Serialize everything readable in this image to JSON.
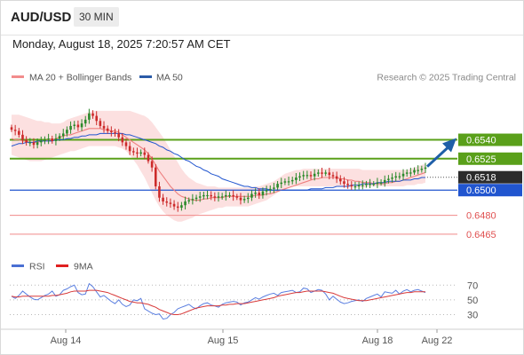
{
  "header": {
    "symbol": "AUD/USD",
    "timeframe": "30 MIN",
    "datetime": "Monday, August 18, 2025 7:20:57 AM CET"
  },
  "legend": [
    {
      "label": "MA 20 + Bollinger Bands",
      "color": "#f28c8c"
    },
    {
      "label": "MA 50",
      "color": "#2b5ba8"
    }
  ],
  "credit": "Research © 2025 Trading Central",
  "rsi_legend": [
    {
      "label": "RSI",
      "color": "#4a6fd3"
    },
    {
      "label": "9MA",
      "color": "#e02020"
    }
  ],
  "colors": {
    "up_candle": "#2a8a2a",
    "down_candle": "#cc2a2a",
    "resistance": "#5aa01a",
    "pivot": "#2155cf",
    "support": "#f08a8a",
    "arrow": "#1f5fa8",
    "last_price": "#2b2b2b"
  },
  "chart_data": {
    "type": "candlestick",
    "symbol": "AUD/USD",
    "ylim": [
      0.6455,
      0.6582
    ],
    "x_ticks": [
      "Aug 14",
      "Aug 15",
      "Aug 18",
      "Aug 22"
    ],
    "levels": [
      {
        "value": 0.654,
        "label": "0.6540",
        "kind": "resistance"
      },
      {
        "value": 0.6525,
        "label": "0.6525",
        "kind": "resistance"
      },
      {
        "value": 0.65,
        "label": "0.6500",
        "kind": "pivot"
      },
      {
        "value": 0.648,
        "label": "0.6480",
        "kind": "support"
      },
      {
        "value": 0.6465,
        "label": "0.6465",
        "kind": "support"
      }
    ],
    "last_price": {
      "value": 0.6518,
      "label": "0.6518"
    },
    "close": [
      0.6548,
      0.6547,
      0.6544,
      0.654,
      0.6538,
      0.6538,
      0.6536,
      0.6538,
      0.6539,
      0.654,
      0.6541,
      0.6539,
      0.6541,
      0.6543,
      0.6545,
      0.6548,
      0.6551,
      0.6552,
      0.655,
      0.6553,
      0.6556,
      0.6561,
      0.6559,
      0.6555,
      0.6551,
      0.6549,
      0.6547,
      0.6546,
      0.6545,
      0.6542,
      0.6538,
      0.6535,
      0.6531,
      0.653,
      0.6529,
      0.653,
      0.6528,
      0.6523,
      0.6518,
      0.6503,
      0.6494,
      0.6491,
      0.649,
      0.6489,
      0.6487,
      0.6486,
      0.6488,
      0.6491,
      0.6492,
      0.6493,
      0.6494,
      0.6495,
      0.6496,
      0.6496,
      0.6495,
      0.6494,
      0.6495,
      0.6495,
      0.6496,
      0.6496,
      0.6495,
      0.6494,
      0.6492,
      0.6493,
      0.6494,
      0.6497,
      0.6498,
      0.6496,
      0.6499,
      0.65,
      0.6501,
      0.6502,
      0.6505,
      0.6506,
      0.6507,
      0.6507,
      0.6508,
      0.651,
      0.6511,
      0.6512,
      0.6512,
      0.6511,
      0.6513,
      0.6514,
      0.6513,
      0.6514,
      0.6512,
      0.6511,
      0.6509,
      0.6507,
      0.6505,
      0.6504,
      0.6503,
      0.6503,
      0.6504,
      0.6504,
      0.6505,
      0.6505,
      0.6505,
      0.6506,
      0.6506,
      0.6508,
      0.6509,
      0.651,
      0.6511,
      0.6511,
      0.6513,
      0.6514,
      0.6514,
      0.6516,
      0.6516,
      0.6517,
      0.6518
    ],
    "ma20": [
      0.6541,
      0.654,
      0.654,
      0.6539,
      0.6539,
      0.6538,
      0.6538,
      0.6538,
      0.6539,
      0.6539,
      0.654,
      0.654,
      0.6541,
      0.6542,
      0.6543,
      0.6544,
      0.6544,
      0.6545,
      0.6546,
      0.6547,
      0.6548,
      0.6549,
      0.6549,
      0.6549,
      0.6549,
      0.6548,
      0.6548,
      0.6547,
      0.6547,
      0.6546,
      0.6544,
      0.6542,
      0.654,
      0.6538,
      0.6536,
      0.6534,
      0.6532,
      0.6529,
      0.6525,
      0.652,
      0.6515,
      0.6511,
      0.6507,
      0.6503,
      0.65,
      0.6497,
      0.6495,
      0.6494,
      0.6493,
      0.6492,
      0.6492,
      0.6492,
      0.6493,
      0.6493,
      0.6494,
      0.6494,
      0.6494,
      0.6494,
      0.6495,
      0.6495,
      0.6495,
      0.6495,
      0.6495,
      0.6495,
      0.6495,
      0.6495,
      0.6496,
      0.6496,
      0.6496,
      0.6497,
      0.6497,
      0.6498,
      0.6499,
      0.65,
      0.6501,
      0.6502,
      0.6503,
      0.6504,
      0.6505,
      0.6506,
      0.6507,
      0.6508,
      0.6509,
      0.6509,
      0.651,
      0.651,
      0.651,
      0.651,
      0.651,
      0.6509,
      0.6509,
      0.6508,
      0.6508,
      0.6507,
      0.6507,
      0.6506,
      0.6506,
      0.6506,
      0.6505,
      0.6505,
      0.6505,
      0.6505,
      0.6506,
      0.6506,
      0.6507,
      0.6507,
      0.6508,
      0.6509,
      0.651,
      0.6511,
      0.6512,
      0.6513,
      0.6514
    ],
    "bb_upper": [
      0.656,
      0.656,
      0.656,
      0.6559,
      0.6558,
      0.6557,
      0.6556,
      0.6555,
      0.6555,
      0.6554,
      0.6554,
      0.6553,
      0.6553,
      0.6553,
      0.6554,
      0.6556,
      0.6557,
      0.6558,
      0.6559,
      0.656,
      0.6561,
      0.6562,
      0.6563,
      0.6563,
      0.6563,
      0.6563,
      0.6563,
      0.6563,
      0.6563,
      0.6563,
      0.6563,
      0.6563,
      0.6563,
      0.6562,
      0.6561,
      0.656,
      0.6559,
      0.6557,
      0.6554,
      0.655,
      0.6546,
      0.6542,
      0.6537,
      0.6532,
      0.6527,
      0.6522,
      0.6517,
      0.6513,
      0.651,
      0.6508,
      0.6506,
      0.6505,
      0.6504,
      0.6503,
      0.6503,
      0.6503,
      0.6502,
      0.6502,
      0.6502,
      0.6502,
      0.6502,
      0.6502,
      0.6502,
      0.6502,
      0.6502,
      0.6502,
      0.6503,
      0.6503,
      0.6504,
      0.6505,
      0.6506,
      0.6507,
      0.6509,
      0.6511,
      0.6513,
      0.6514,
      0.6515,
      0.6516,
      0.6516,
      0.6517,
      0.6517,
      0.6517,
      0.6517,
      0.6517,
      0.6517,
      0.6517,
      0.6517,
      0.6517,
      0.6517,
      0.6517,
      0.6517,
      0.6517,
      0.6517,
      0.6517,
      0.6517,
      0.6516,
      0.6516,
      0.6516,
      0.6516,
      0.6516,
      0.6516,
      0.6516,
      0.6516,
      0.6516,
      0.6516,
      0.6516,
      0.6516,
      0.6516,
      0.6517,
      0.6518,
      0.6519,
      0.652,
      0.6521
    ],
    "bb_lower": [
      0.6528,
      0.6527,
      0.6526,
      0.6525,
      0.6524,
      0.6523,
      0.6523,
      0.6523,
      0.6523,
      0.6524,
      0.6525,
      0.6526,
      0.6527,
      0.6528,
      0.6529,
      0.653,
      0.6531,
      0.6531,
      0.6532,
      0.6533,
      0.6534,
      0.6535,
      0.6535,
      0.6535,
      0.6535,
      0.6535,
      0.6535,
      0.6535,
      0.6535,
      0.6534,
      0.6533,
      0.6531,
      0.6528,
      0.6524,
      0.652,
      0.6515,
      0.651,
      0.6504,
      0.6498,
      0.6492,
      0.6487,
      0.6483,
      0.648,
      0.6478,
      0.6476,
      0.6475,
      0.6475,
      0.6476,
      0.6477,
      0.6478,
      0.648,
      0.6481,
      0.6482,
      0.6483,
      0.6484,
      0.6485,
      0.6486,
      0.6486,
      0.6487,
      0.6487,
      0.6487,
      0.6487,
      0.6487,
      0.6487,
      0.6487,
      0.6488,
      0.6489,
      0.649,
      0.6491,
      0.6492,
      0.6494,
      0.6496,
      0.6498,
      0.65,
      0.6501,
      0.6502,
      0.6503,
      0.6503,
      0.6503,
      0.6503,
      0.6503,
      0.6503,
      0.6503,
      0.6503,
      0.6503,
      0.6503,
      0.6503,
      0.6503,
      0.6503,
      0.6503,
      0.6502,
      0.6502,
      0.6502,
      0.6502,
      0.6502,
      0.6502,
      0.6502,
      0.6503,
      0.6503,
      0.6503,
      0.6503,
      0.6503,
      0.6503,
      0.6503,
      0.6503,
      0.6503,
      0.6503,
      0.6504,
      0.6504,
      0.6504,
      0.6505,
      0.6505,
      0.6506
    ],
    "ma50": [
      0.6535,
      0.6536,
      0.6537,
      0.6537,
      0.6538,
      0.6538,
      0.6538,
      0.6539,
      0.6539,
      0.6539,
      0.6539,
      0.6539,
      0.654,
      0.654,
      0.654,
      0.6541,
      0.6541,
      0.6542,
      0.6542,
      0.6543,
      0.6543,
      0.6544,
      0.6544,
      0.6544,
      0.6545,
      0.6545,
      0.6545,
      0.6545,
      0.6545,
      0.6545,
      0.6545,
      0.6544,
      0.6544,
      0.6543,
      0.6542,
      0.6541,
      0.654,
      0.6539,
      0.6538,
      0.6537,
      0.6535,
      0.6534,
      0.6532,
      0.6531,
      0.6529,
      0.6528,
      0.6526,
      0.6524,
      0.6523,
      0.6521,
      0.6519,
      0.6518,
      0.6516,
      0.6515,
      0.6513,
      0.6512,
      0.6511,
      0.6509,
      0.6508,
      0.6507,
      0.6506,
      0.6505,
      0.6504,
      0.6503,
      0.6503,
      0.6502,
      0.6502,
      0.6501,
      0.6501,
      0.6501,
      0.65,
      0.65,
      0.65,
      0.65,
      0.65,
      0.65,
      0.65,
      0.65,
      0.65,
      0.65,
      0.65,
      0.6501,
      0.6501,
      0.6501,
      0.6501,
      0.6502,
      0.6502,
      0.6502,
      0.6503,
      0.6503,
      0.6503,
      0.6503,
      0.6504,
      0.6504,
      0.6504,
      0.6505,
      0.6505,
      0.6505,
      0.6505,
      0.6506,
      0.6506,
      0.6506,
      0.6507,
      0.6507,
      0.6507,
      0.6507,
      0.6508,
      0.6508,
      0.6508,
      0.6509,
      0.6509,
      0.651,
      0.651
    ],
    "forecast_arrow": {
      "from": 0.6518,
      "to": 0.654
    },
    "rsi": {
      "ylim": [
        15,
        80
      ],
      "ticks": [
        70,
        50,
        30
      ],
      "rsi": [
        55,
        52,
        56,
        62,
        58,
        54,
        51,
        50,
        53,
        56,
        58,
        62,
        55,
        57,
        63,
        65,
        68,
        70,
        60,
        57,
        58,
        72,
        68,
        61,
        54,
        56,
        52,
        48,
        45,
        50,
        44,
        41,
        43,
        50,
        49,
        52,
        38,
        35,
        32,
        30,
        31,
        24,
        25,
        30,
        33,
        38,
        40,
        42,
        44,
        40,
        38,
        42,
        45,
        46,
        43,
        42,
        40,
        44,
        46,
        47,
        48,
        47,
        43,
        46,
        47,
        50,
        53,
        51,
        54,
        56,
        58,
        59,
        56,
        60,
        61,
        62,
        63,
        60,
        61,
        66,
        65,
        60,
        62,
        64,
        63,
        58,
        50,
        55,
        51,
        47,
        45,
        46,
        48,
        49,
        50,
        48,
        52,
        54,
        56,
        58,
        54,
        61,
        60,
        59,
        63,
        58,
        62,
        64,
        61,
        63,
        64,
        62,
        60
      ],
      "ma9": [
        55,
        54,
        54,
        55,
        55,
        55,
        55,
        55,
        55,
        55,
        55,
        56,
        56,
        57,
        58,
        59,
        61,
        62,
        62,
        62,
        62,
        63,
        63,
        63,
        62,
        61,
        60,
        58,
        56,
        54,
        52,
        50,
        48,
        47,
        46,
        46,
        45,
        44,
        42,
        40,
        37,
        35,
        33,
        31,
        30,
        30,
        31,
        33,
        35,
        37,
        39,
        40,
        41,
        42,
        42,
        42,
        42,
        43,
        43,
        44,
        44,
        45,
        45,
        45,
        46,
        47,
        48,
        49,
        50,
        51,
        52,
        53,
        55,
        56,
        57,
        58,
        59,
        60,
        60,
        61,
        62,
        62,
        62,
        62,
        62,
        61,
        60,
        59,
        57,
        55,
        53,
        52,
        51,
        50,
        49,
        49,
        49,
        50,
        51,
        52,
        53,
        54,
        55,
        56,
        57,
        58,
        59,
        60,
        60,
        61,
        61,
        61,
        61
      ]
    }
  }
}
